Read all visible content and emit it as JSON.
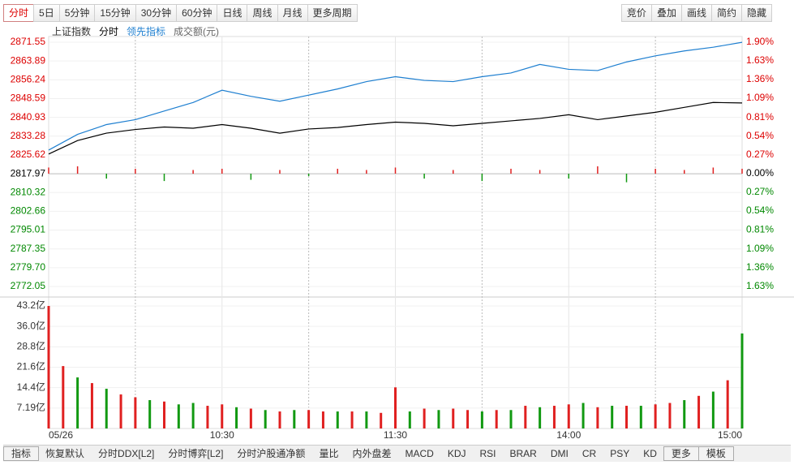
{
  "toolbar": {
    "left": [
      "分时",
      "5日",
      "5分钟",
      "15分钟",
      "30分钟",
      "60分钟",
      "日线",
      "周线",
      "月线",
      "更多周期"
    ],
    "right": [
      "竞价",
      "叠加",
      "画线",
      "简约",
      "隐藏"
    ]
  },
  "indicators": [
    "指标",
    "恢复默认",
    "分时DDX[L2]",
    "分时博弈[L2]",
    "分时沪股通净额",
    "量比",
    "内外盘差",
    "MACD",
    "KDJ",
    "RSI",
    "BRAR",
    "DMI",
    "CR",
    "PSY",
    "KD",
    "更多",
    "模板"
  ],
  "chart_data": [
    {
      "type": "line",
      "title": "上证指数",
      "x": [
        0,
        10,
        20,
        30,
        40,
        50,
        60,
        70,
        80,
        90,
        100,
        110,
        120,
        130,
        140,
        150,
        160,
        170,
        180,
        190,
        200,
        210,
        220,
        230,
        240
      ],
      "xlim": [
        0,
        240
      ],
      "xgrid": [
        30,
        60,
        90,
        120,
        150,
        180,
        210
      ],
      "series": [
        {
          "name": "分时",
          "color": "#000000",
          "values": [
            2826.0,
            2831.5,
            2834.5,
            2836.0,
            2837.0,
            2836.5,
            2838.0,
            2836.5,
            2834.5,
            2836.2,
            2836.8,
            2838.0,
            2839.0,
            2838.5,
            2837.5,
            2838.5,
            2839.5,
            2840.5,
            2842.0,
            2840.0,
            2841.5,
            2843.0,
            2845.0,
            2847.0,
            2846.8
          ]
        },
        {
          "name": "领先指标",
          "color": "#1e7fd0",
          "values": [
            2827.6,
            2834.0,
            2838.0,
            2840.0,
            2843.5,
            2847.0,
            2852.0,
            2849.5,
            2847.5,
            2850.0,
            2852.5,
            2855.5,
            2857.5,
            2856.0,
            2855.5,
            2857.5,
            2859.0,
            2862.5,
            2860.5,
            2860.0,
            2863.5,
            2866.0,
            2868.0,
            2869.5,
            2871.5
          ]
        }
      ],
      "diff_bars": {
        "up_color": "#e02020",
        "down_color": "#119911",
        "values": [
          2.5,
          3,
          -2,
          2,
          -3,
          1.5,
          2,
          -2.5,
          1.5,
          -1,
          2,
          1.5,
          2.5,
          -2,
          1.5,
          -3,
          2,
          1.5,
          -2,
          3,
          -3.5,
          2,
          1.5,
          2.5,
          2
        ]
      },
      "ylim": [
        2772.05,
        2871.55
      ],
      "yticks": [
        {
          "value": 2871.55,
          "label": "2871.55"
        },
        2863.89,
        2856.24,
        2848.59,
        2840.93,
        2833.28,
        2825.62,
        2817.97,
        2810.32,
        2802.66,
        2795.01,
        2787.35,
        {
          "value": 2779.7,
          "label": "2779.70"
        },
        2772.05
      ],
      "y2lim": [
        -1.63,
        1.9
      ],
      "y2ticks": [
        {
          "value": 1.9,
          "label": "1.90%"
        },
        {
          "value": 1.63,
          "label": "1.63%"
        },
        {
          "value": 1.36,
          "label": "1.36%"
        },
        {
          "value": 1.09,
          "label": "1.09%"
        },
        {
          "value": 0.81,
          "label": "0.81%"
        },
        {
          "value": 0.54,
          "label": "0.54%"
        },
        {
          "value": 0.27,
          "label": "0.27%"
        },
        {
          "value": 0,
          "label": "0.00%"
        },
        {
          "value": -0.27,
          "label": "0.27%"
        },
        {
          "value": -0.54,
          "label": "0.54%"
        },
        {
          "value": -0.81,
          "label": "0.81%"
        },
        {
          "value": -1.09,
          "label": "1.09%"
        },
        {
          "value": -1.36,
          "label": "1.36%"
        },
        {
          "value": -1.63,
          "label": "1.63%"
        }
      ],
      "grid": true
    },
    {
      "type": "bar",
      "title": "成交额(元)",
      "x": [
        0,
        5,
        10,
        15,
        20,
        25,
        30,
        35,
        40,
        45,
        50,
        55,
        60,
        65,
        70,
        75,
        80,
        85,
        90,
        95,
        100,
        105,
        110,
        115,
        120,
        125,
        130,
        135,
        140,
        145,
        150,
        155,
        160,
        165,
        170,
        175,
        180,
        185,
        190,
        195,
        200,
        205,
        210,
        215,
        220,
        225,
        230,
        235,
        240
      ],
      "values": [
        43.2,
        22,
        18,
        16,
        14,
        12,
        11,
        10,
        9.5,
        8.5,
        9,
        8,
        8.5,
        7.5,
        7,
        6.5,
        6,
        6.5,
        6.5,
        6,
        6,
        6,
        6,
        5.5,
        14.5,
        6,
        7,
        6.5,
        7,
        6.5,
        6,
        6.5,
        6.5,
        8,
        7.5,
        8,
        8.5,
        9,
        7.5,
        8,
        8,
        8,
        8.5,
        9,
        10,
        11.5,
        13,
        17,
        33.5
      ],
      "colors": [
        "#e02020",
        "#e02020",
        "#119911",
        "#e02020",
        "#119911",
        "#e02020",
        "#e02020",
        "#119911",
        "#e02020",
        "#119911",
        "#119911",
        "#e02020",
        "#e02020",
        "#119911",
        "#e02020",
        "#119911",
        "#e02020",
        "#119911",
        "#e02020",
        "#e02020",
        "#119911",
        "#e02020",
        "#119911",
        "#e02020",
        "#e02020",
        "#119911",
        "#e02020",
        "#119911",
        "#e02020",
        "#e02020",
        "#119911",
        "#e02020",
        "#119911",
        "#e02020",
        "#119911",
        "#e02020",
        "#e02020",
        "#119911",
        "#e02020",
        "#119911",
        "#e02020",
        "#119911",
        "#e02020",
        "#e02020",
        "#119911",
        "#e02020",
        "#119911",
        "#e02020",
        "#119911"
      ],
      "xlim": [
        0,
        240
      ],
      "xticks": [
        {
          "value": 0,
          "label": "05/26"
        },
        {
          "value": 60,
          "label": "10:30"
        },
        {
          "value": 120,
          "label": "11:30"
        },
        {
          "value": 180,
          "label": "14:00"
        },
        {
          "value": 240,
          "label": "15:00"
        }
      ],
      "ylim": [
        0,
        43.2
      ],
      "yticks": [
        {
          "value": 43.2,
          "label": "43.2亿"
        },
        {
          "value": 36.0,
          "label": "36.0亿"
        },
        {
          "value": 28.8,
          "label": "28.8亿"
        },
        {
          "value": 21.6,
          "label": "21.6亿"
        },
        {
          "value": 14.4,
          "label": "14.4亿"
        },
        {
          "value": 7.19,
          "label": "7.19亿"
        }
      ]
    }
  ]
}
